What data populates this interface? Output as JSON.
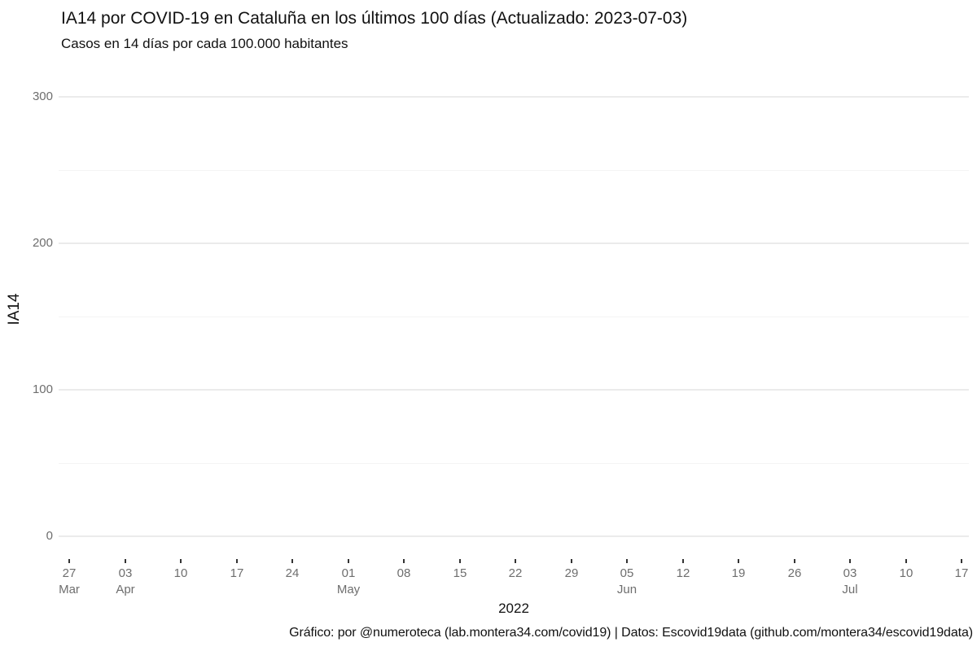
{
  "header": {
    "title": "IA14 por COVID-19 en Cataluña en los últimos 100 días (Actualizado: 2023-07-03)",
    "subtitle": "Casos en 14 días por cada 100.000 habitantes"
  },
  "footer": {
    "credits": "Gráfico: por @numeroteca (lab.montera34.com/covid19) | Datos: Escovid19data (github.com/montera34/escovid19data)"
  },
  "chart_data": {
    "type": "line",
    "title": "IA14 por COVID-19 en Cataluña en los últimos 100 días (Actualizado: 2023-07-03)",
    "subtitle": "Casos en 14 días por cada 100.000 habitantes",
    "xlabel": "2022",
    "ylabel": "IA14",
    "ylim": [
      0,
      300
    ],
    "grid": true,
    "legend": false,
    "y_ticks_labeled": [
      0,
      100,
      200,
      300
    ],
    "y_gridlines_minor": [
      50,
      150,
      250
    ],
    "x_ticks": [
      {
        "day": "27",
        "month": "Mar"
      },
      {
        "day": "03",
        "month": "Apr"
      },
      {
        "day": "10"
      },
      {
        "day": "17"
      },
      {
        "day": "24"
      },
      {
        "day": "01",
        "month": "May"
      },
      {
        "day": "08"
      },
      {
        "day": "15"
      },
      {
        "day": "22"
      },
      {
        "day": "29"
      },
      {
        "day": "05",
        "month": "Jun"
      },
      {
        "day": "12"
      },
      {
        "day": "19"
      },
      {
        "day": "26"
      },
      {
        "day": "03",
        "month": "Jul"
      },
      {
        "day": "10"
      },
      {
        "day": "17"
      }
    ],
    "series": [],
    "colors": {
      "background": "#ffffff",
      "grid_major": "#ebebeb",
      "grid_minor": "#f4f4f4",
      "tick_mark": "#333333",
      "tick_label": "#6e6e6e",
      "text": "#111111"
    }
  }
}
